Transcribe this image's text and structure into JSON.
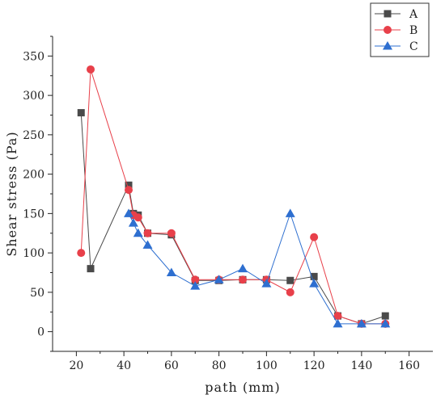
{
  "chart_data": {
    "type": "line",
    "title": "",
    "xlabel": "path (mm)",
    "ylabel": "Shear stress (Pa)",
    "xlim": [
      10,
      170
    ],
    "ylim": [
      -25,
      375
    ],
    "xticks": [
      20,
      40,
      60,
      80,
      100,
      120,
      140,
      160
    ],
    "yticks": [
      0,
      50,
      100,
      150,
      200,
      250,
      300,
      350
    ],
    "legend_position": "top-right",
    "grid": false,
    "series": [
      {
        "name": "A",
        "color": "#4a4a4a",
        "marker": "square",
        "x": [
          22,
          26,
          42,
          44,
          46,
          50,
          60,
          70,
          80,
          90,
          100,
          110,
          120,
          130,
          140,
          150
        ],
        "y": [
          278,
          80,
          186,
          150,
          148,
          125,
          123,
          65,
          65,
          66,
          66,
          65,
          70,
          20,
          10,
          20
        ]
      },
      {
        "name": "B",
        "color": "#e8404a",
        "marker": "circle",
        "x": [
          22,
          26,
          42,
          44,
          46,
          50,
          60,
          70,
          80,
          90,
          100,
          110,
          120,
          130,
          140,
          150
        ],
        "y": [
          100,
          333,
          180,
          148,
          145,
          125,
          125,
          66,
          66,
          66,
          66,
          50,
          120,
          20,
          10,
          10
        ]
      },
      {
        "name": "C",
        "color": "#2e6fd0",
        "marker": "triangle",
        "x": [
          42,
          44,
          46,
          50,
          60,
          70,
          80,
          90,
          100,
          110,
          120,
          130,
          140,
          150
        ],
        "y": [
          150,
          138,
          125,
          110,
          75,
          58,
          66,
          80,
          61,
          150,
          61,
          10,
          10,
          10
        ]
      }
    ]
  }
}
